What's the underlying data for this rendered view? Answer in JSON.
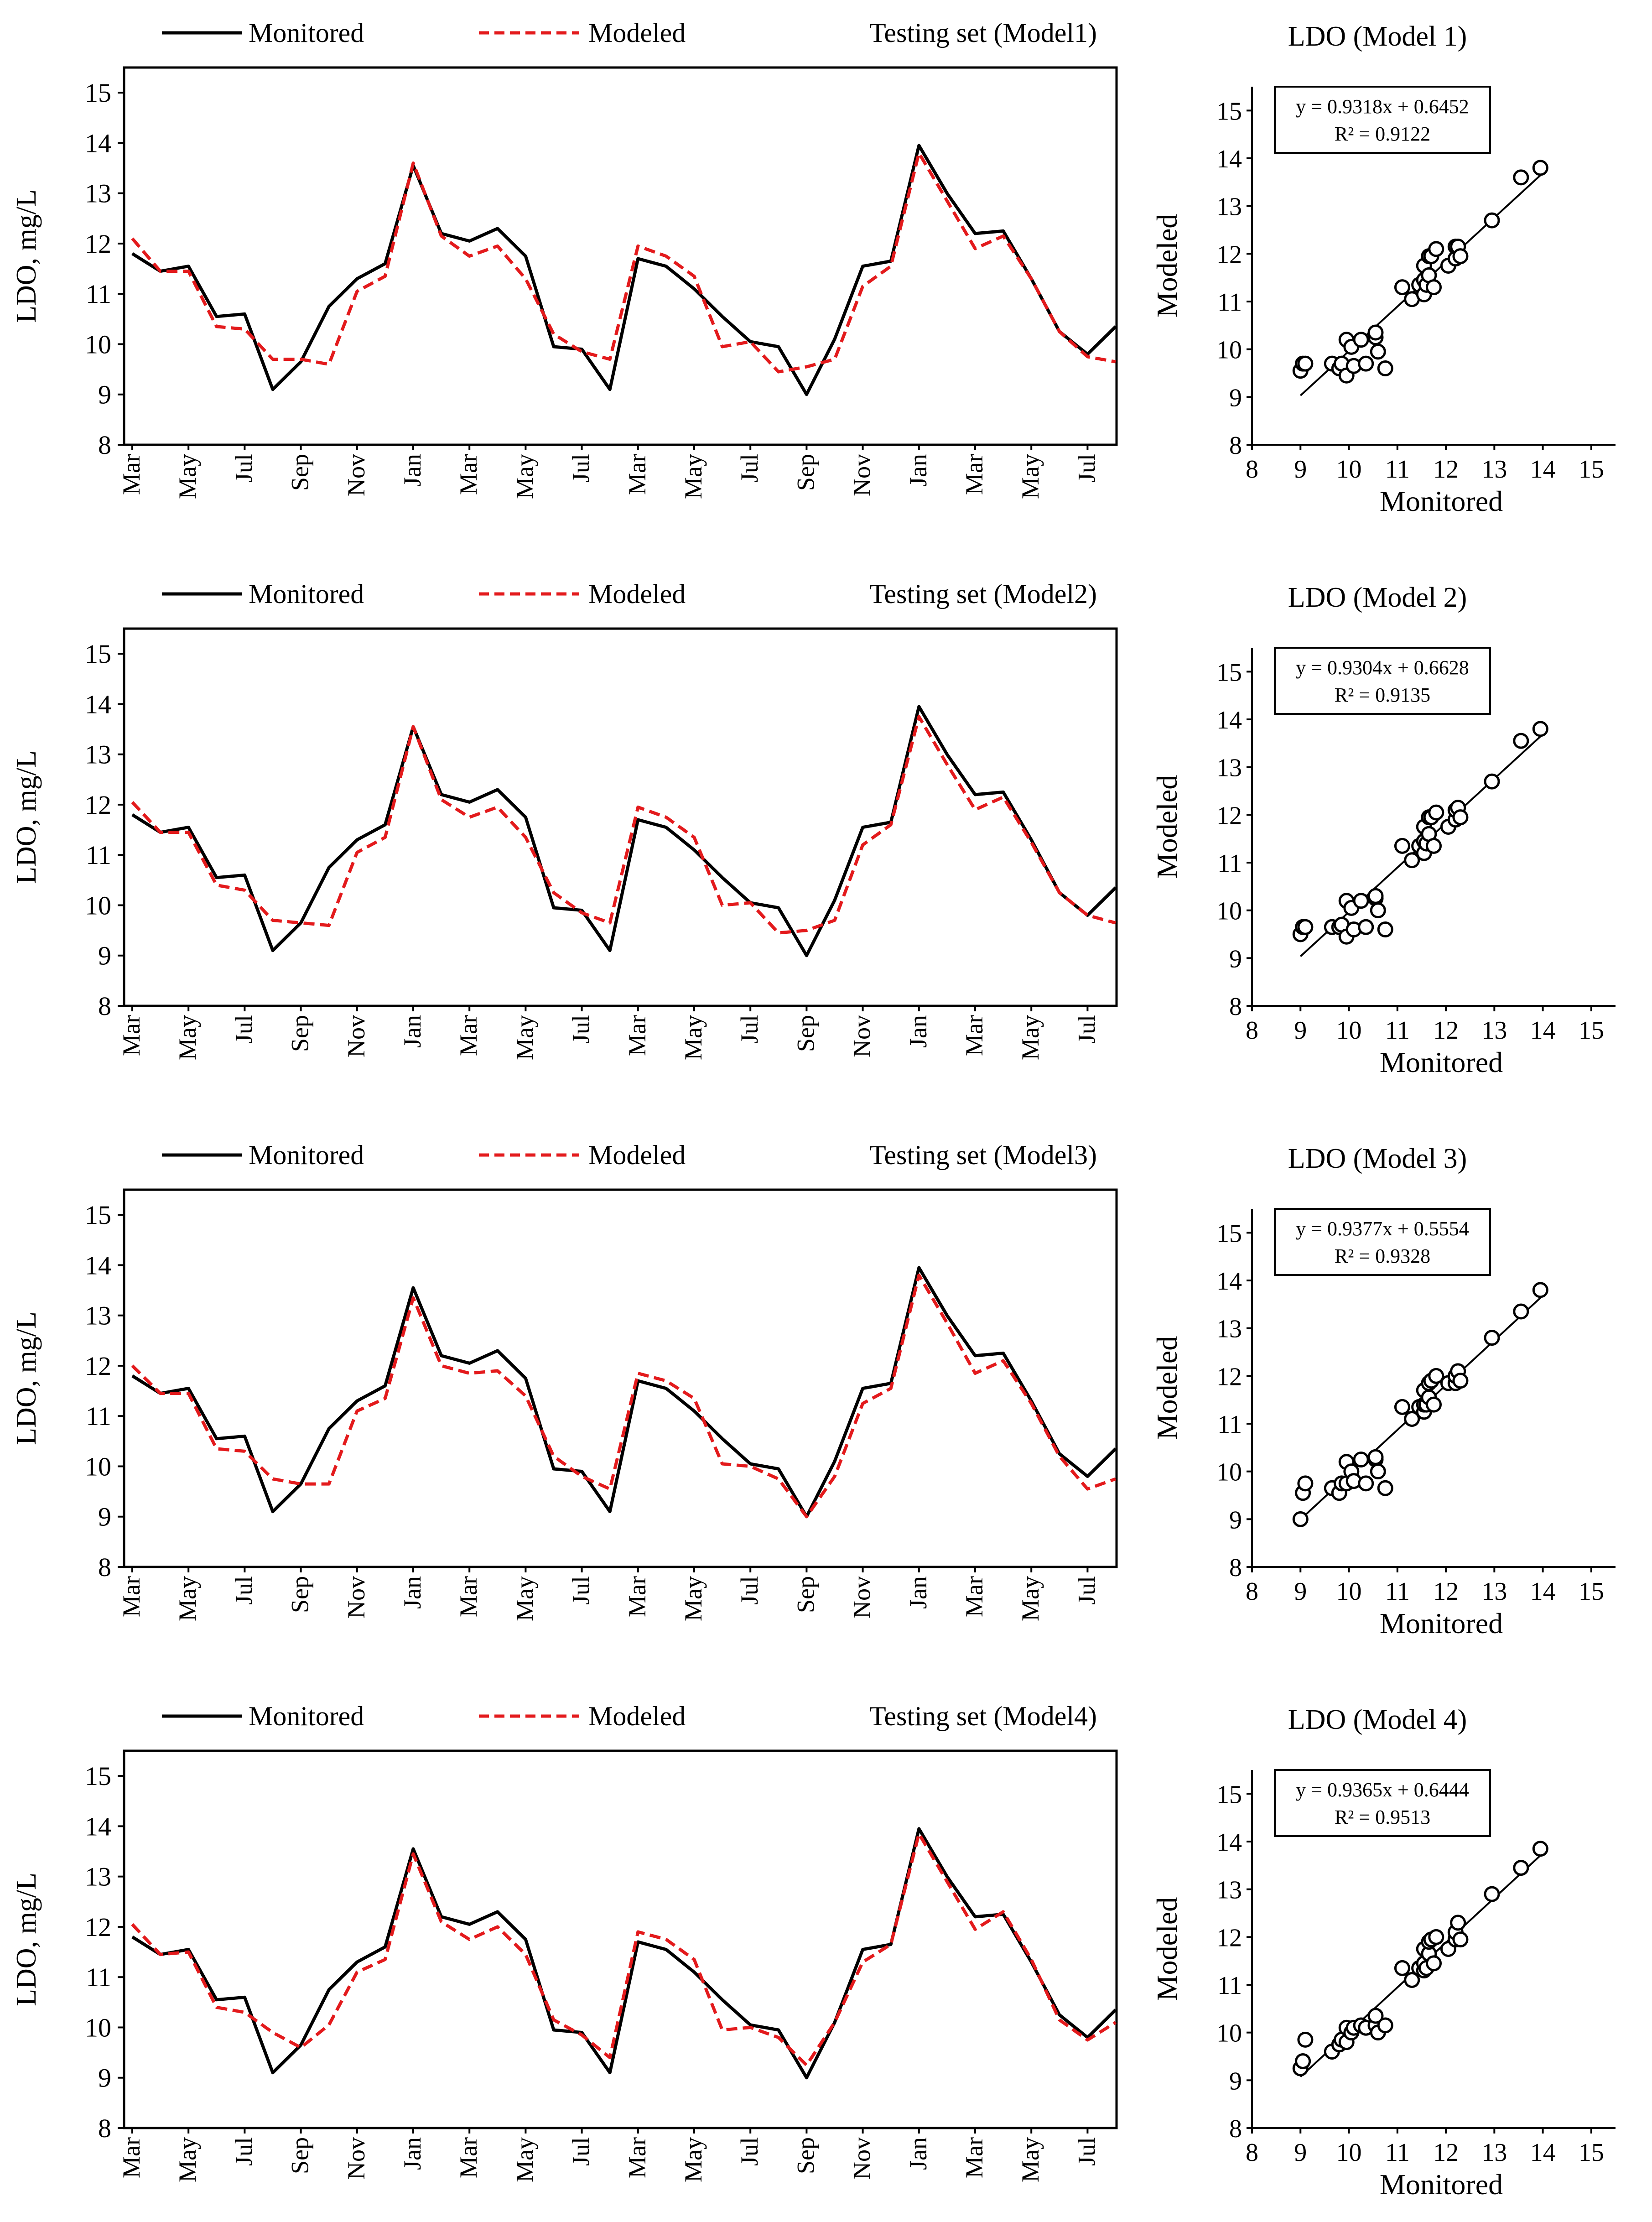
{
  "legend": {
    "monitored_label": "Monitored",
    "modeled_label": "Modeled",
    "monitored_color": "#000000",
    "modeled_color": "#e31a1c"
  },
  "timeseries_axes": {
    "ylabel": "LDO, mg/L",
    "ylim": [
      8,
      15.5
    ],
    "yticks": [
      8,
      9,
      10,
      11,
      12,
      13,
      14,
      15
    ],
    "xticks": [
      "Mar",
      "May",
      "Jul",
      "Sep",
      "Nov",
      "Jan",
      "Mar",
      "May",
      "Jul",
      "Mar",
      "May",
      "Jul",
      "Sep",
      "Nov",
      "Jan",
      "Mar",
      "May",
      "Jul"
    ]
  },
  "scatter_axes": {
    "xlabel": "Monitored",
    "ylabel": "Modeled",
    "xlim": [
      8,
      15.5
    ],
    "ylim": [
      8,
      15.5
    ],
    "ticks": [
      8,
      9,
      10,
      11,
      12,
      13,
      14,
      15
    ]
  },
  "chart_data": [
    {
      "type": "line",
      "title": "Testing set (Model1)",
      "series": [
        {
          "name": "Monitored",
          "values": [
            11.8,
            11.45,
            11.55,
            10.55,
            10.6,
            9.1,
            9.65,
            10.75,
            11.3,
            11.6,
            13.55,
            12.2,
            12.05,
            12.3,
            11.75,
            9.95,
            9.9,
            9.1,
            11.7,
            11.55,
            11.1,
            10.55,
            10.05,
            9.95,
            9.0,
            10.1,
            11.55,
            11.65,
            13.95,
            13.0,
            12.2,
            12.25,
            11.3,
            10.25,
            9.8,
            10.35
          ]
        },
        {
          "name": "Modeled",
          "values": [
            12.1,
            11.45,
            11.45,
            10.35,
            10.3,
            9.7,
            9.7,
            9.6,
            11.05,
            11.35,
            13.6,
            12.15,
            11.75,
            11.95,
            11.3,
            10.2,
            9.85,
            9.7,
            11.95,
            11.75,
            11.35,
            9.95,
            10.05,
            9.45,
            9.55,
            9.7,
            11.15,
            11.55,
            13.8,
            12.85,
            11.9,
            12.15,
            11.3,
            10.25,
            9.75,
            9.65
          ]
        }
      ]
    },
    {
      "type": "scatter",
      "title": "LDO (Model 1)",
      "equation": "y = 0.9318x + 0.6452",
      "r2": "R² = 0.9122",
      "slope": 0.9318,
      "intercept": 0.6452,
      "fit_range": [
        9.0,
        14.0
      ],
      "x": [
        9.0,
        9.05,
        9.1,
        9.65,
        9.8,
        9.85,
        9.95,
        9.95,
        10.05,
        10.1,
        10.25,
        10.35,
        10.55,
        10.55,
        10.6,
        10.75,
        11.1,
        11.3,
        11.45,
        11.55,
        11.55,
        11.55,
        11.6,
        11.65,
        11.65,
        11.7,
        11.75,
        11.8,
        12.05,
        12.2,
        12.2,
        12.25,
        12.3,
        12.95,
        13.55,
        13.95
      ],
      "y": [
        9.55,
        9.7,
        9.7,
        9.7,
        9.6,
        9.7,
        10.2,
        9.45,
        10.05,
        9.65,
        10.2,
        9.7,
        10.25,
        10.35,
        9.95,
        9.6,
        11.3,
        11.05,
        11.35,
        11.15,
        11.45,
        11.75,
        11.35,
        11.55,
        11.95,
        11.95,
        11.3,
        12.1,
        11.75,
        11.9,
        12.15,
        12.15,
        11.95,
        12.7,
        13.6,
        13.8
      ]
    },
    {
      "type": "line",
      "title": "Testing set (Model2)",
      "series": [
        {
          "name": "Monitored",
          "values": [
            11.8,
            11.45,
            11.55,
            10.55,
            10.6,
            9.1,
            9.65,
            10.75,
            11.3,
            11.6,
            13.55,
            12.2,
            12.05,
            12.3,
            11.75,
            9.95,
            9.9,
            9.1,
            11.7,
            11.55,
            11.1,
            10.55,
            10.05,
            9.95,
            9.0,
            10.1,
            11.55,
            11.65,
            13.95,
            13.0,
            12.2,
            12.25,
            11.3,
            10.25,
            9.8,
            10.35
          ]
        },
        {
          "name": "Modeled",
          "values": [
            12.05,
            11.45,
            11.45,
            10.4,
            10.3,
            9.7,
            9.65,
            9.6,
            11.05,
            11.35,
            13.55,
            12.1,
            11.75,
            11.95,
            11.35,
            10.25,
            9.85,
            9.65,
            11.95,
            11.75,
            11.35,
            10.0,
            10.05,
            9.45,
            9.5,
            9.7,
            11.2,
            11.6,
            13.75,
            12.8,
            11.9,
            12.15,
            11.25,
            10.25,
            9.8,
            9.65
          ]
        }
      ]
    },
    {
      "type": "scatter",
      "title": "LDO (Model 2)",
      "equation": "y = 0.9304x + 0.6628",
      "r2": "R² = 0.9135",
      "slope": 0.9304,
      "intercept": 0.6628,
      "fit_range": [
        9.0,
        14.0
      ],
      "x": [
        9.0,
        9.05,
        9.1,
        9.65,
        9.8,
        9.85,
        9.95,
        9.95,
        10.05,
        10.1,
        10.25,
        10.35,
        10.55,
        10.55,
        10.6,
        10.75,
        11.1,
        11.3,
        11.45,
        11.55,
        11.55,
        11.55,
        11.6,
        11.65,
        11.65,
        11.7,
        11.75,
        11.8,
        12.05,
        12.2,
        12.2,
        12.25,
        12.3,
        12.95,
        13.55,
        13.95
      ],
      "y": [
        9.5,
        9.65,
        9.65,
        9.65,
        9.65,
        9.7,
        10.2,
        9.45,
        10.05,
        9.6,
        10.2,
        9.65,
        10.25,
        10.3,
        10.0,
        9.6,
        11.35,
        11.05,
        11.35,
        11.2,
        11.45,
        11.75,
        11.4,
        11.6,
        11.95,
        11.95,
        11.35,
        12.05,
        11.75,
        11.9,
        12.1,
        12.15,
        11.95,
        12.7,
        13.55,
        13.8
      ]
    },
    {
      "type": "line",
      "title": "Testing set (Model3)",
      "series": [
        {
          "name": "Monitored",
          "values": [
            11.8,
            11.45,
            11.55,
            10.55,
            10.6,
            9.1,
            9.65,
            10.75,
            11.3,
            11.6,
            13.55,
            12.2,
            12.05,
            12.3,
            11.75,
            9.95,
            9.9,
            9.1,
            11.7,
            11.55,
            11.1,
            10.55,
            10.05,
            9.95,
            9.0,
            10.1,
            11.55,
            11.65,
            13.95,
            13.0,
            12.2,
            12.25,
            11.3,
            10.25,
            9.8,
            10.35
          ]
        },
        {
          "name": "Modeled",
          "values": [
            12.0,
            11.45,
            11.45,
            10.35,
            10.3,
            9.75,
            9.65,
            9.65,
            11.1,
            11.35,
            13.35,
            12.0,
            11.85,
            11.9,
            11.4,
            10.2,
            9.8,
            9.55,
            11.85,
            11.7,
            11.35,
            10.05,
            10.0,
            9.75,
            9.0,
            9.8,
            11.25,
            11.55,
            13.8,
            12.85,
            11.85,
            12.1,
            11.25,
            10.2,
            9.55,
            9.75
          ]
        }
      ]
    },
    {
      "type": "scatter",
      "title": "LDO (Model 3)",
      "equation": "y = 0.9377x + 0.5554",
      "r2": "R² = 0.9328",
      "slope": 0.9377,
      "intercept": 0.5554,
      "fit_range": [
        9.0,
        14.0
      ],
      "x": [
        9.0,
        9.05,
        9.1,
        9.65,
        9.8,
        9.85,
        9.95,
        9.95,
        10.05,
        10.1,
        10.25,
        10.35,
        10.55,
        10.55,
        10.6,
        10.75,
        11.1,
        11.3,
        11.45,
        11.55,
        11.55,
        11.55,
        11.6,
        11.65,
        11.65,
        11.7,
        11.75,
        11.8,
        12.05,
        12.2,
        12.2,
        12.25,
        12.3,
        12.95,
        13.55,
        13.95
      ],
      "y": [
        9.0,
        9.55,
        9.75,
        9.65,
        9.55,
        9.75,
        10.2,
        9.75,
        10.0,
        9.8,
        10.25,
        9.75,
        10.25,
        10.3,
        10.0,
        9.65,
        11.35,
        11.1,
        11.35,
        11.25,
        11.4,
        11.7,
        11.4,
        11.55,
        11.85,
        11.9,
        11.4,
        12.0,
        11.85,
        11.85,
        12.0,
        12.1,
        11.9,
        12.8,
        13.35,
        13.8
      ]
    },
    {
      "type": "line",
      "title": "Testing set (Model4)",
      "series": [
        {
          "name": "Monitored",
          "values": [
            11.8,
            11.45,
            11.55,
            10.55,
            10.6,
            9.1,
            9.65,
            10.75,
            11.3,
            11.6,
            13.55,
            12.2,
            12.05,
            12.3,
            11.75,
            9.95,
            9.9,
            9.1,
            11.7,
            11.55,
            11.1,
            10.55,
            10.05,
            9.95,
            9.0,
            10.1,
            11.55,
            11.65,
            13.95,
            13.0,
            12.2,
            12.25,
            11.3,
            10.25,
            9.8,
            10.35
          ]
        },
        {
          "name": "Modeled",
          "values": [
            12.05,
            11.45,
            11.5,
            10.4,
            10.3,
            9.9,
            9.6,
            10.05,
            11.1,
            11.35,
            13.45,
            12.1,
            11.75,
            12.0,
            11.45,
            10.15,
            9.85,
            9.4,
            11.9,
            11.75,
            11.35,
            9.95,
            10.0,
            9.8,
            9.25,
            10.1,
            11.3,
            11.65,
            13.85,
            12.9,
            11.95,
            12.3,
            11.35,
            10.15,
            9.75,
            10.1
          ]
        }
      ]
    },
    {
      "type": "scatter",
      "title": "LDO (Model 4)",
      "equation": "y = 0.9365x + 0.6444",
      "r2": "R² = 0.9513",
      "slope": 0.9365,
      "intercept": 0.6444,
      "fit_range": [
        9.0,
        14.0
      ],
      "x": [
        9.0,
        9.05,
        9.1,
        9.65,
        9.8,
        9.85,
        9.95,
        9.95,
        10.05,
        10.1,
        10.25,
        10.35,
        10.55,
        10.55,
        10.6,
        10.75,
        11.1,
        11.3,
        11.45,
        11.55,
        11.55,
        11.55,
        11.6,
        11.65,
        11.65,
        11.7,
        11.75,
        11.8,
        12.05,
        12.2,
        12.2,
        12.25,
        12.3,
        12.95,
        13.55,
        13.95
      ],
      "y": [
        9.25,
        9.4,
        9.85,
        9.6,
        9.75,
        9.85,
        10.1,
        9.8,
        10.0,
        10.1,
        10.15,
        10.1,
        10.15,
        10.35,
        10.0,
        10.15,
        11.35,
        11.1,
        11.35,
        11.3,
        11.45,
        11.75,
        11.35,
        11.65,
        11.9,
        11.95,
        11.45,
        12.0,
        11.75,
        11.95,
        12.1,
        12.3,
        11.95,
        12.9,
        13.45,
        13.85
      ]
    }
  ]
}
